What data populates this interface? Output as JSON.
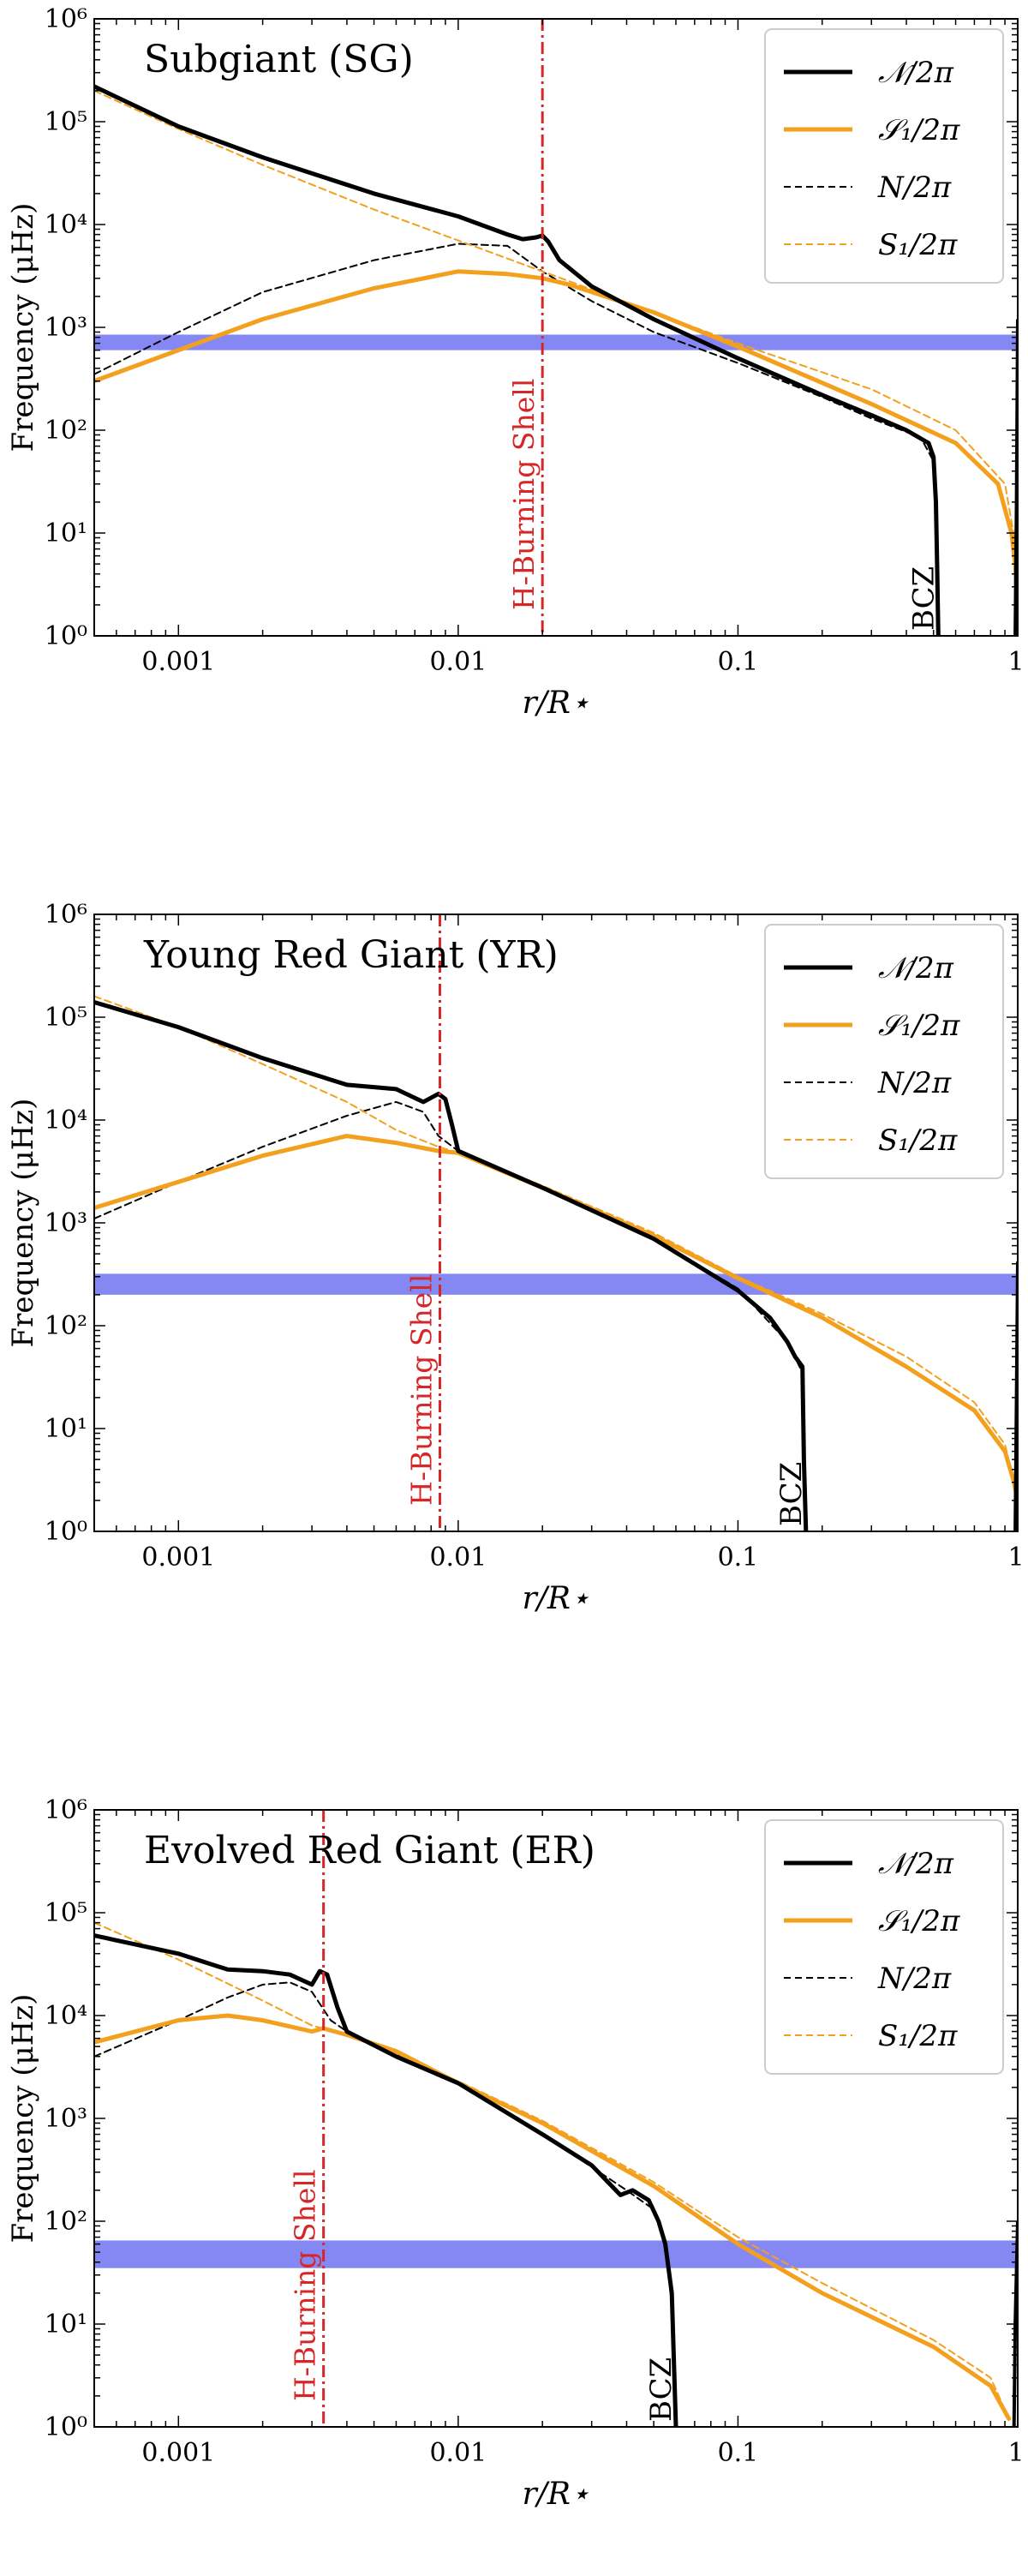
{
  "figure": {
    "legend": [
      {
        "key": "N_fancy",
        "label": "𝒩/2π",
        "color": "#000000",
        "dash": "solid",
        "width": 5
      },
      {
        "key": "S1_fancy",
        "label": "𝒮₁/2π",
        "color": "#f2a01e",
        "dash": "solid",
        "width": 5
      },
      {
        "key": "N",
        "label": "N/2π",
        "color": "#000000",
        "dash": "dashed",
        "width": 2
      },
      {
        "key": "S1",
        "label": "S₁/2π",
        "color": "#f2a01e",
        "dash": "dashed",
        "width": 2
      }
    ],
    "colors": {
      "black": "#000000",
      "orange": "#f2a01e",
      "red": "#d62728",
      "band": "#7b7ef2"
    }
  },
  "chart_data": [
    {
      "type": "line",
      "title": "Subgiant (SG)",
      "xlabel": "r/R⋆",
      "ylabel": "Frequency (μHz)",
      "xscale": "log",
      "yscale": "log",
      "xlim": [
        0.0005,
        1.0
      ],
      "ylim": [
        1,
        1000000
      ],
      "xticks": [
        {
          "v": 0.001,
          "label": "0.001"
        },
        {
          "v": 0.01,
          "label": "0.01"
        },
        {
          "v": 0.1,
          "label": "0.1"
        },
        {
          "v": 1,
          "label": "1"
        }
      ],
      "yticks": [
        {
          "v": 1,
          "label": "10⁰"
        },
        {
          "v": 10,
          "label": "10¹"
        },
        {
          "v": 100,
          "label": "10²"
        },
        {
          "v": 1000,
          "label": "10³"
        },
        {
          "v": 10000,
          "label": "10⁴"
        },
        {
          "v": 100000,
          "label": "10⁵"
        },
        {
          "v": 1000000,
          "label": "10⁶"
        }
      ],
      "band": [
        600,
        850
      ],
      "shell": {
        "x": 0.02,
        "label": "H-Burning Shell"
      },
      "bcz": {
        "x": 0.52,
        "label": "BCZ"
      },
      "series": {
        "N_fancy": [
          [
            0.0005,
            220000
          ],
          [
            0.001,
            90000
          ],
          [
            0.002,
            45000
          ],
          [
            0.005,
            20000
          ],
          [
            0.01,
            12000
          ],
          [
            0.015,
            8000
          ],
          [
            0.017,
            7200
          ],
          [
            0.019,
            7500
          ],
          [
            0.02,
            7800
          ],
          [
            0.021,
            6800
          ],
          [
            0.023,
            4500
          ],
          [
            0.03,
            2500
          ],
          [
            0.05,
            1200
          ],
          [
            0.1,
            500
          ],
          [
            0.2,
            220
          ],
          [
            0.3,
            140
          ],
          [
            0.4,
            100
          ],
          [
            0.48,
            75
          ],
          [
            0.5,
            55
          ],
          [
            0.51,
            20
          ],
          [
            0.515,
            5
          ],
          [
            0.52,
            1
          ]
        ],
        "S1_fancy": [
          [
            0.0005,
            300
          ],
          [
            0.001,
            600
          ],
          [
            0.002,
            1200
          ],
          [
            0.005,
            2400
          ],
          [
            0.01,
            3500
          ],
          [
            0.015,
            3300
          ],
          [
            0.02,
            3000
          ],
          [
            0.025,
            2600
          ],
          [
            0.05,
            1400
          ],
          [
            0.1,
            650
          ],
          [
            0.3,
            180
          ],
          [
            0.6,
            75
          ],
          [
            0.85,
            30
          ],
          [
            0.95,
            10
          ],
          [
            0.98,
            5
          ],
          [
            1.0,
            2
          ]
        ],
        "N": [
          [
            0.0005,
            350
          ],
          [
            0.001,
            900
          ],
          [
            0.002,
            2200
          ],
          [
            0.005,
            4500
          ],
          [
            0.01,
            6500
          ],
          [
            0.015,
            6200
          ],
          [
            0.02,
            3500
          ],
          [
            0.03,
            1800
          ],
          [
            0.05,
            900
          ],
          [
            0.1,
            450
          ],
          [
            0.2,
            210
          ],
          [
            0.3,
            130
          ],
          [
            0.45,
            85
          ],
          [
            0.5,
            50
          ],
          [
            0.51,
            20
          ],
          [
            0.515,
            3
          ],
          [
            0.52,
            1
          ]
        ],
        "S1": [
          [
            0.0005,
            200000
          ],
          [
            0.001,
            85000
          ],
          [
            0.002,
            38000
          ],
          [
            0.005,
            14000
          ],
          [
            0.01,
            7000
          ],
          [
            0.02,
            3500
          ],
          [
            0.05,
            1400
          ],
          [
            0.1,
            700
          ],
          [
            0.3,
            250
          ],
          [
            0.6,
            100
          ],
          [
            0.9,
            30
          ],
          [
            0.98,
            8
          ],
          [
            1.0,
            3
          ]
        ],
        "surface": [
          [
            0.98,
            1
          ],
          [
            0.99,
            20
          ],
          [
            1.0,
            1200
          ]
        ]
      }
    },
    {
      "type": "line",
      "title": "Young Red Giant (YR)",
      "xlabel": "r/R⋆",
      "ylabel": "Frequency (μHz)",
      "xscale": "log",
      "yscale": "log",
      "xlim": [
        0.0005,
        1.0
      ],
      "ylim": [
        1,
        1000000
      ],
      "xticks": [
        {
          "v": 0.001,
          "label": "0.001"
        },
        {
          "v": 0.01,
          "label": "0.01"
        },
        {
          "v": 0.1,
          "label": "0.1"
        },
        {
          "v": 1,
          "label": "1"
        }
      ],
      "yticks": [
        {
          "v": 1,
          "label": "10⁰"
        },
        {
          "v": 10,
          "label": "10¹"
        },
        {
          "v": 100,
          "label": "10²"
        },
        {
          "v": 1000,
          "label": "10³"
        },
        {
          "v": 10000,
          "label": "10⁴"
        },
        {
          "v": 100000,
          "label": "10⁵"
        },
        {
          "v": 1000000,
          "label": "10⁶"
        }
      ],
      "band": [
        200,
        320
      ],
      "shell": {
        "x": 0.0086,
        "label": "H-Burning Shell"
      },
      "bcz": {
        "x": 0.175,
        "label": "BCZ"
      },
      "series": {
        "N_fancy": [
          [
            0.0005,
            140000
          ],
          [
            0.001,
            80000
          ],
          [
            0.002,
            40000
          ],
          [
            0.004,
            22000
          ],
          [
            0.006,
            20000
          ],
          [
            0.0075,
            15000
          ],
          [
            0.0085,
            18000
          ],
          [
            0.009,
            16000
          ],
          [
            0.0095,
            9000
          ],
          [
            0.01,
            5000
          ],
          [
            0.02,
            2200
          ],
          [
            0.05,
            700
          ],
          [
            0.1,
            220
          ],
          [
            0.13,
            120
          ],
          [
            0.15,
            70
          ],
          [
            0.16,
            50
          ],
          [
            0.17,
            40
          ],
          [
            0.172,
            5
          ],
          [
            0.175,
            1
          ]
        ],
        "S1_fancy": [
          [
            0.0005,
            1400
          ],
          [
            0.001,
            2500
          ],
          [
            0.002,
            4500
          ],
          [
            0.004,
            7000
          ],
          [
            0.006,
            6000
          ],
          [
            0.0085,
            5000
          ],
          [
            0.01,
            4800
          ],
          [
            0.02,
            2200
          ],
          [
            0.05,
            750
          ],
          [
            0.1,
            290
          ],
          [
            0.2,
            120
          ],
          [
            0.4,
            40
          ],
          [
            0.7,
            15
          ],
          [
            0.9,
            6
          ],
          [
            0.97,
            3
          ],
          [
            1.0,
            2
          ]
        ],
        "N": [
          [
            0.0005,
            1100
          ],
          [
            0.001,
            2500
          ],
          [
            0.002,
            5500
          ],
          [
            0.004,
            11000
          ],
          [
            0.006,
            15000
          ],
          [
            0.0075,
            12000
          ],
          [
            0.0085,
            7000
          ],
          [
            0.01,
            5000
          ],
          [
            0.02,
            2200
          ],
          [
            0.05,
            700
          ],
          [
            0.1,
            230
          ],
          [
            0.15,
            70
          ],
          [
            0.17,
            35
          ],
          [
            0.172,
            3
          ],
          [
            0.175,
            1
          ]
        ],
        "S1": [
          [
            0.0005,
            160000
          ],
          [
            0.001,
            80000
          ],
          [
            0.002,
            35000
          ],
          [
            0.004,
            15000
          ],
          [
            0.006,
            8000
          ],
          [
            0.0085,
            5500
          ],
          [
            0.01,
            4800
          ],
          [
            0.02,
            2300
          ],
          [
            0.05,
            800
          ],
          [
            0.1,
            300
          ],
          [
            0.2,
            130
          ],
          [
            0.4,
            50
          ],
          [
            0.7,
            18
          ],
          [
            0.9,
            7
          ],
          [
            0.97,
            3
          ],
          [
            1.0,
            2
          ]
        ],
        "surface": [
          [
            0.98,
            1
          ],
          [
            0.99,
            20
          ],
          [
            1.0,
            420
          ]
        ]
      }
    },
    {
      "type": "line",
      "title": "Evolved Red Giant (ER)",
      "xlabel": "r/R⋆",
      "ylabel": "Frequency (μHz)",
      "xscale": "log",
      "yscale": "log",
      "xlim": [
        0.0005,
        1.0
      ],
      "ylim": [
        1,
        1000000
      ],
      "xticks": [
        {
          "v": 0.001,
          "label": "0.001"
        },
        {
          "v": 0.01,
          "label": "0.01"
        },
        {
          "v": 0.1,
          "label": "0.1"
        },
        {
          "v": 1,
          "label": "1"
        }
      ],
      "yticks": [
        {
          "v": 1,
          "label": "10⁰"
        },
        {
          "v": 10,
          "label": "10¹"
        },
        {
          "v": 100,
          "label": "10²"
        },
        {
          "v": 1000,
          "label": "10³"
        },
        {
          "v": 10000,
          "label": "10⁴"
        },
        {
          "v": 100000,
          "label": "10⁵"
        },
        {
          "v": 1000000,
          "label": "10⁶"
        }
      ],
      "band": [
        35,
        65
      ],
      "shell": {
        "x": 0.0033,
        "label": "H-Burning Shell"
      },
      "bcz": {
        "x": 0.06,
        "label": "BCZ"
      },
      "series": {
        "N_fancy": [
          [
            0.0005,
            60000
          ],
          [
            0.001,
            40000
          ],
          [
            0.0015,
            28000
          ],
          [
            0.002,
            27000
          ],
          [
            0.0025,
            25000
          ],
          [
            0.003,
            20000
          ],
          [
            0.0032,
            27000
          ],
          [
            0.0034,
            25000
          ],
          [
            0.0037,
            12000
          ],
          [
            0.004,
            7000
          ],
          [
            0.006,
            4000
          ],
          [
            0.01,
            2200
          ],
          [
            0.02,
            700
          ],
          [
            0.03,
            350
          ],
          [
            0.038,
            180
          ],
          [
            0.042,
            200
          ],
          [
            0.048,
            160
          ],
          [
            0.052,
            100
          ],
          [
            0.055,
            60
          ],
          [
            0.058,
            20
          ],
          [
            0.06,
            1
          ]
        ],
        "S1_fancy": [
          [
            0.0005,
            5500
          ],
          [
            0.001,
            9000
          ],
          [
            0.0015,
            10000
          ],
          [
            0.002,
            9000
          ],
          [
            0.003,
            7000
          ],
          [
            0.0033,
            7500
          ],
          [
            0.004,
            6500
          ],
          [
            0.006,
            4500
          ],
          [
            0.01,
            2200
          ],
          [
            0.02,
            900
          ],
          [
            0.05,
            220
          ],
          [
            0.1,
            60
          ],
          [
            0.2,
            20
          ],
          [
            0.5,
            6
          ],
          [
            0.8,
            2.5
          ],
          [
            0.93,
            1.2
          ]
        ],
        "N": [
          [
            0.0005,
            4000
          ],
          [
            0.001,
            9000
          ],
          [
            0.0015,
            15000
          ],
          [
            0.002,
            20000
          ],
          [
            0.0025,
            21000
          ],
          [
            0.003,
            17000
          ],
          [
            0.0035,
            9000
          ],
          [
            0.004,
            7000
          ],
          [
            0.01,
            2200
          ],
          [
            0.02,
            700
          ],
          [
            0.04,
            200
          ],
          [
            0.05,
            130
          ],
          [
            0.055,
            60
          ],
          [
            0.058,
            15
          ],
          [
            0.06,
            1
          ]
        ],
        "S1": [
          [
            0.0005,
            80000
          ],
          [
            0.001,
            35000
          ],
          [
            0.002,
            14000
          ],
          [
            0.003,
            8000
          ],
          [
            0.004,
            6500
          ],
          [
            0.006,
            4300
          ],
          [
            0.01,
            2300
          ],
          [
            0.02,
            950
          ],
          [
            0.05,
            240
          ],
          [
            0.1,
            70
          ],
          [
            0.2,
            25
          ],
          [
            0.5,
            7
          ],
          [
            0.8,
            3
          ],
          [
            0.93,
            1.2
          ]
        ],
        "surface": [
          [
            0.97,
            1
          ],
          [
            0.98,
            10
          ],
          [
            1.0,
            100
          ]
        ]
      }
    }
  ]
}
